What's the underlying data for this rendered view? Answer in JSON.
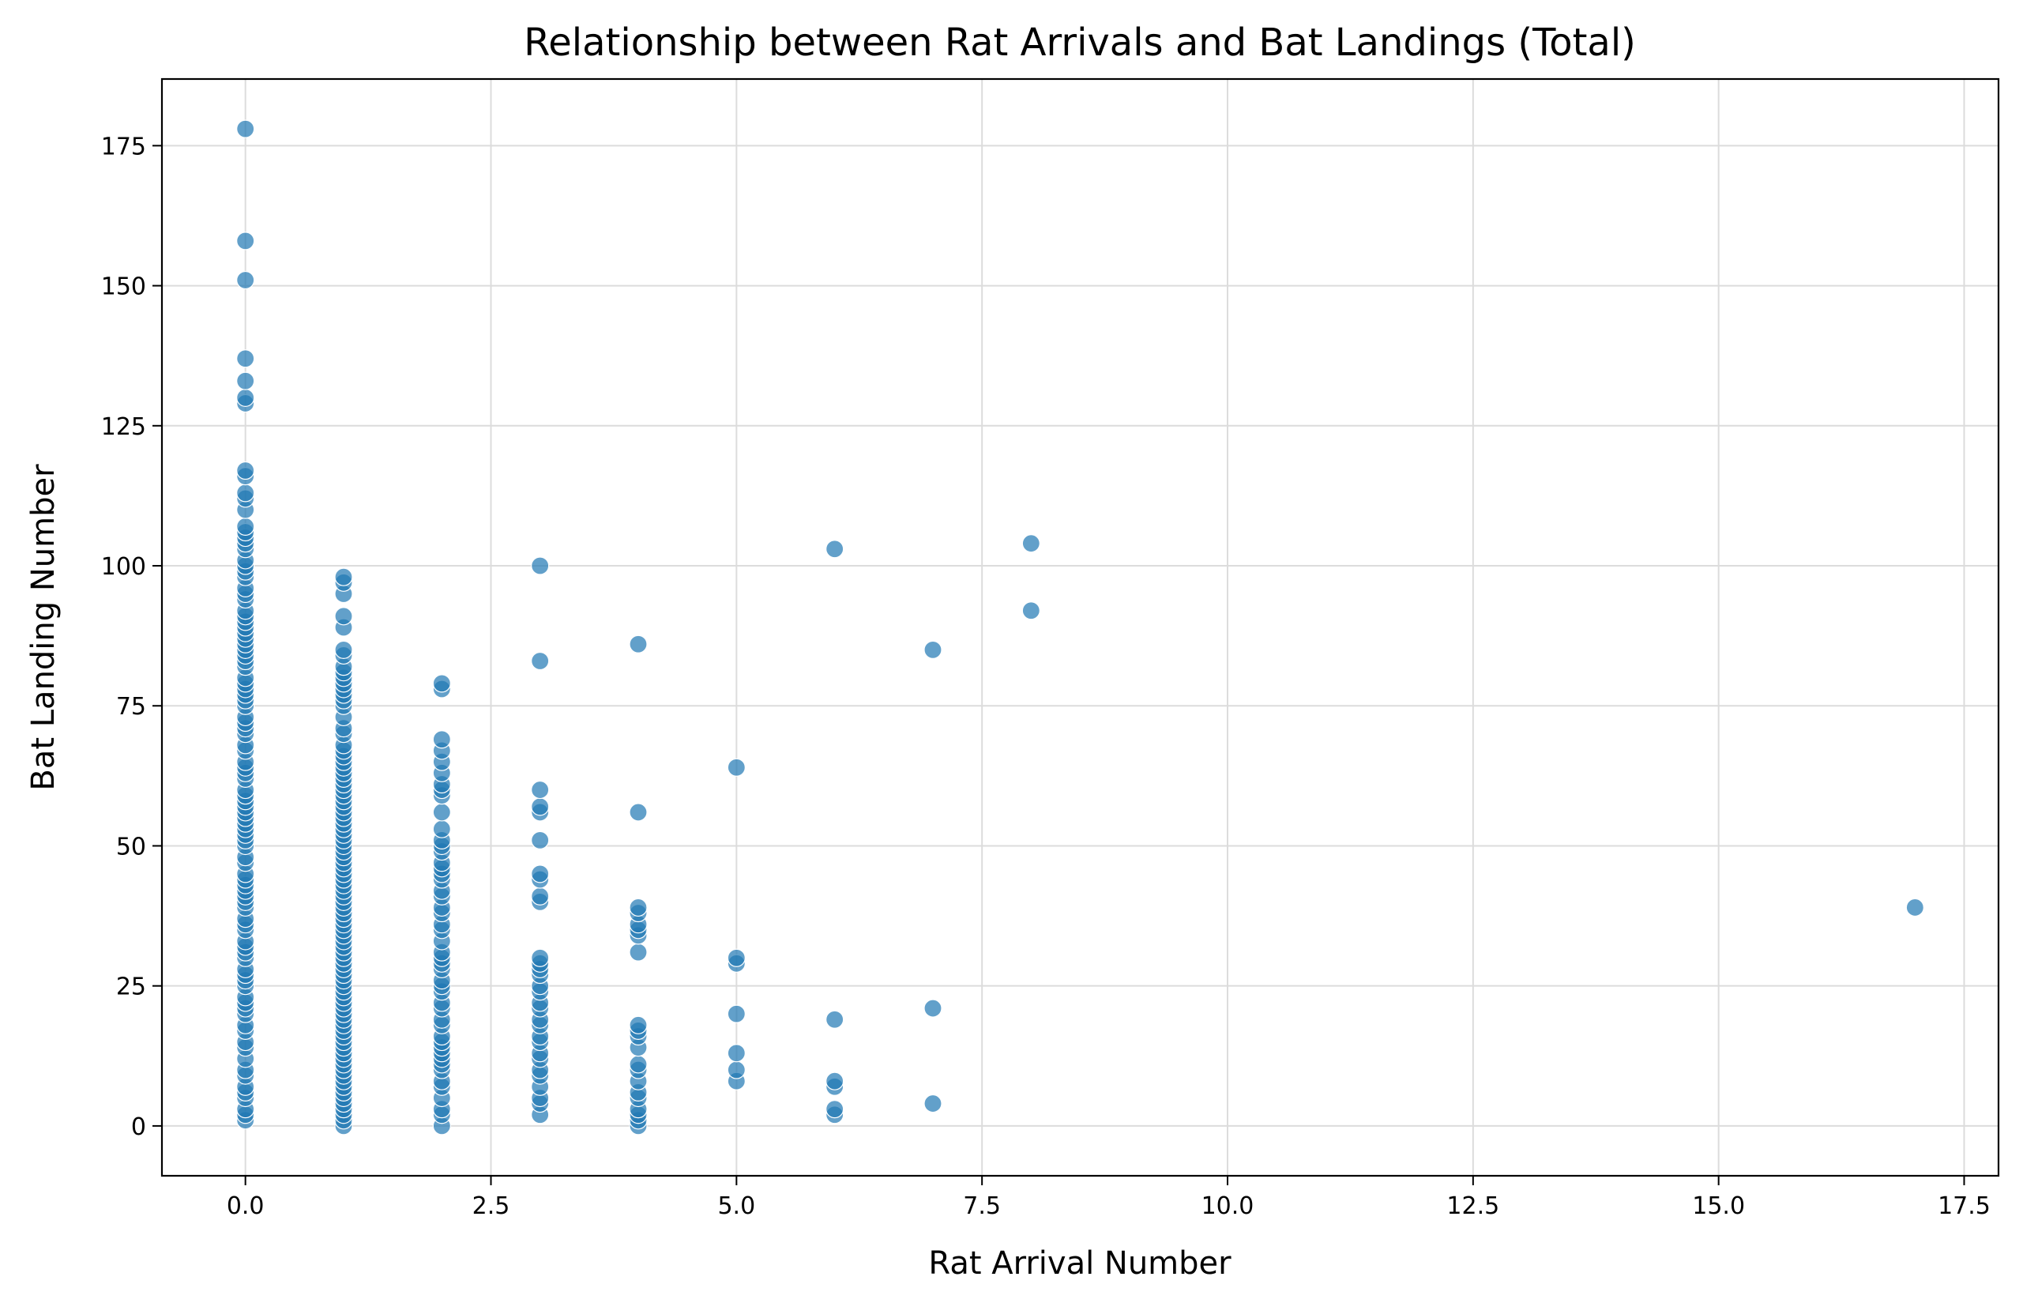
{
  "chart_data": {
    "type": "scatter",
    "title": "Relationship between Rat Arrivals and Bat Landings (Total)",
    "xlabel": "Rat Arrival Number",
    "ylabel": "Bat Landing Number",
    "xlim": [
      -0.85,
      17.85
    ],
    "ylim": [
      -8.9,
      186.9
    ],
    "xticks": [
      0,
      2.5,
      5,
      7.5,
      10,
      12.5,
      15,
      17.5
    ],
    "xtick_labels": [
      "0.0",
      "2.5",
      "5.0",
      "7.5",
      "10.0",
      "12.5",
      "15.0",
      "17.5"
    ],
    "yticks": [
      0,
      25,
      50,
      75,
      100,
      125,
      150,
      175
    ],
    "ytick_labels": [
      "0",
      "25",
      "50",
      "75",
      "100",
      "125",
      "150",
      "175"
    ],
    "grid": true,
    "marker_color": "#1f77b4",
    "marker_alpha": 0.7,
    "series": [
      {
        "points": [
          [
            0,
            1
          ],
          [
            0,
            2
          ],
          [
            0,
            3
          ],
          [
            0,
            5
          ],
          [
            0,
            6
          ],
          [
            0,
            7
          ],
          [
            0,
            9
          ],
          [
            0,
            10
          ],
          [
            0,
            12
          ],
          [
            0,
            14
          ],
          [
            0,
            15
          ],
          [
            0,
            17
          ],
          [
            0,
            18
          ],
          [
            0,
            20
          ],
          [
            0,
            21
          ],
          [
            0,
            22
          ],
          [
            0,
            23
          ],
          [
            0,
            25
          ],
          [
            0,
            26
          ],
          [
            0,
            27
          ],
          [
            0,
            28
          ],
          [
            0,
            30
          ],
          [
            0,
            31
          ],
          [
            0,
            32
          ],
          [
            0,
            33
          ],
          [
            0,
            35
          ],
          [
            0,
            36
          ],
          [
            0,
            37
          ],
          [
            0,
            39
          ],
          [
            0,
            40
          ],
          [
            0,
            41
          ],
          [
            0,
            42
          ],
          [
            0,
            43
          ],
          [
            0,
            44
          ],
          [
            0,
            45
          ],
          [
            0,
            47
          ],
          [
            0,
            48
          ],
          [
            0,
            50
          ],
          [
            0,
            51
          ],
          [
            0,
            52
          ],
          [
            0,
            53
          ],
          [
            0,
            54
          ],
          [
            0,
            55
          ],
          [
            0,
            56
          ],
          [
            0,
            57
          ],
          [
            0,
            58
          ],
          [
            0,
            59
          ],
          [
            0,
            60
          ],
          [
            0,
            62
          ],
          [
            0,
            63
          ],
          [
            0,
            64
          ],
          [
            0,
            65
          ],
          [
            0,
            67
          ],
          [
            0,
            68
          ],
          [
            0,
            70
          ],
          [
            0,
            71
          ],
          [
            0,
            72
          ],
          [
            0,
            73
          ],
          [
            0,
            75
          ],
          [
            0,
            76
          ],
          [
            0,
            77
          ],
          [
            0,
            78
          ],
          [
            0,
            79
          ],
          [
            0,
            80
          ],
          [
            0,
            82
          ],
          [
            0,
            83
          ],
          [
            0,
            84
          ],
          [
            0,
            85
          ],
          [
            0,
            86
          ],
          [
            0,
            87
          ],
          [
            0,
            88
          ],
          [
            0,
            89
          ],
          [
            0,
            90
          ],
          [
            0,
            91
          ],
          [
            0,
            92
          ],
          [
            0,
            94
          ],
          [
            0,
            95
          ],
          [
            0,
            96
          ],
          [
            0,
            98
          ],
          [
            0,
            99
          ],
          [
            0,
            100
          ],
          [
            0,
            101
          ],
          [
            0,
            103
          ],
          [
            0,
            104
          ],
          [
            0,
            105
          ],
          [
            0,
            106
          ],
          [
            0,
            107
          ],
          [
            0,
            110
          ],
          [
            0,
            112
          ],
          [
            0,
            113
          ],
          [
            0,
            116
          ],
          [
            0,
            117
          ],
          [
            0,
            129
          ],
          [
            0,
            130
          ],
          [
            0,
            133
          ],
          [
            0,
            137
          ],
          [
            0,
            151
          ],
          [
            0,
            158
          ],
          [
            0,
            178
          ],
          [
            1,
            0
          ],
          [
            1,
            1
          ],
          [
            1,
            2
          ],
          [
            1,
            3
          ],
          [
            1,
            4
          ],
          [
            1,
            5
          ],
          [
            1,
            6
          ],
          [
            1,
            7
          ],
          [
            1,
            8
          ],
          [
            1,
            9
          ],
          [
            1,
            10
          ],
          [
            1,
            11
          ],
          [
            1,
            12
          ],
          [
            1,
            13
          ],
          [
            1,
            14
          ],
          [
            1,
            15
          ],
          [
            1,
            16
          ],
          [
            1,
            17
          ],
          [
            1,
            18
          ],
          [
            1,
            19
          ],
          [
            1,
            20
          ],
          [
            1,
            21
          ],
          [
            1,
            22
          ],
          [
            1,
            23
          ],
          [
            1,
            24
          ],
          [
            1,
            25
          ],
          [
            1,
            26
          ],
          [
            1,
            27
          ],
          [
            1,
            28
          ],
          [
            1,
            29
          ],
          [
            1,
            30
          ],
          [
            1,
            31
          ],
          [
            1,
            32
          ],
          [
            1,
            33
          ],
          [
            1,
            34
          ],
          [
            1,
            35
          ],
          [
            1,
            36
          ],
          [
            1,
            37
          ],
          [
            1,
            38
          ],
          [
            1,
            39
          ],
          [
            1,
            40
          ],
          [
            1,
            41
          ],
          [
            1,
            42
          ],
          [
            1,
            43
          ],
          [
            1,
            44
          ],
          [
            1,
            45
          ],
          [
            1,
            46
          ],
          [
            1,
            47
          ],
          [
            1,
            48
          ],
          [
            1,
            49
          ],
          [
            1,
            50
          ],
          [
            1,
            51
          ],
          [
            1,
            52
          ],
          [
            1,
            53
          ],
          [
            1,
            54
          ],
          [
            1,
            55
          ],
          [
            1,
            56
          ],
          [
            1,
            57
          ],
          [
            1,
            58
          ],
          [
            1,
            59
          ],
          [
            1,
            60
          ],
          [
            1,
            61
          ],
          [
            1,
            62
          ],
          [
            1,
            63
          ],
          [
            1,
            64
          ],
          [
            1,
            65
          ],
          [
            1,
            66
          ],
          [
            1,
            67
          ],
          [
            1,
            68
          ],
          [
            1,
            70
          ],
          [
            1,
            71
          ],
          [
            1,
            73
          ],
          [
            1,
            75
          ],
          [
            1,
            76
          ],
          [
            1,
            77
          ],
          [
            1,
            78
          ],
          [
            1,
            79
          ],
          [
            1,
            80
          ],
          [
            1,
            81
          ],
          [
            1,
            82
          ],
          [
            1,
            84
          ],
          [
            1,
            85
          ],
          [
            1,
            89
          ],
          [
            1,
            91
          ],
          [
            1,
            95
          ],
          [
            1,
            97
          ],
          [
            1,
            98
          ],
          [
            2,
            0
          ],
          [
            2,
            2
          ],
          [
            2,
            3
          ],
          [
            2,
            5
          ],
          [
            2,
            7
          ],
          [
            2,
            8
          ],
          [
            2,
            10
          ],
          [
            2,
            11
          ],
          [
            2,
            12
          ],
          [
            2,
            13
          ],
          [
            2,
            14
          ],
          [
            2,
            15
          ],
          [
            2,
            16
          ],
          [
            2,
            18
          ],
          [
            2,
            19
          ],
          [
            2,
            21
          ],
          [
            2,
            22
          ],
          [
            2,
            24
          ],
          [
            2,
            25
          ],
          [
            2,
            26
          ],
          [
            2,
            28
          ],
          [
            2,
            29
          ],
          [
            2,
            30
          ],
          [
            2,
            31
          ],
          [
            2,
            33
          ],
          [
            2,
            35
          ],
          [
            2,
            36
          ],
          [
            2,
            38
          ],
          [
            2,
            39
          ],
          [
            2,
            41
          ],
          [
            2,
            42
          ],
          [
            2,
            44
          ],
          [
            2,
            45
          ],
          [
            2,
            46
          ],
          [
            2,
            47
          ],
          [
            2,
            49
          ],
          [
            2,
            50
          ],
          [
            2,
            51
          ],
          [
            2,
            53
          ],
          [
            2,
            56
          ],
          [
            2,
            59
          ],
          [
            2,
            60
          ],
          [
            2,
            61
          ],
          [
            2,
            63
          ],
          [
            2,
            65
          ],
          [
            2,
            67
          ],
          [
            2,
            69
          ],
          [
            2,
            78
          ],
          [
            2,
            79
          ],
          [
            3,
            2
          ],
          [
            3,
            4
          ],
          [
            3,
            5
          ],
          [
            3,
            7
          ],
          [
            3,
            9
          ],
          [
            3,
            10
          ],
          [
            3,
            12
          ],
          [
            3,
            13
          ],
          [
            3,
            15
          ],
          [
            3,
            16
          ],
          [
            3,
            18
          ],
          [
            3,
            19
          ],
          [
            3,
            21
          ],
          [
            3,
            22
          ],
          [
            3,
            24
          ],
          [
            3,
            25
          ],
          [
            3,
            27
          ],
          [
            3,
            28
          ],
          [
            3,
            29
          ],
          [
            3,
            30
          ],
          [
            3,
            40
          ],
          [
            3,
            41
          ],
          [
            3,
            44
          ],
          [
            3,
            45
          ],
          [
            3,
            51
          ],
          [
            3,
            56
          ],
          [
            3,
            57
          ],
          [
            3,
            60
          ],
          [
            3,
            83
          ],
          [
            3,
            100
          ],
          [
            4,
            0
          ],
          [
            4,
            1
          ],
          [
            4,
            2
          ],
          [
            4,
            3
          ],
          [
            4,
            5
          ],
          [
            4,
            6
          ],
          [
            4,
            8
          ],
          [
            4,
            10
          ],
          [
            4,
            11
          ],
          [
            4,
            14
          ],
          [
            4,
            16
          ],
          [
            4,
            17
          ],
          [
            4,
            18
          ],
          [
            4,
            31
          ],
          [
            4,
            34
          ],
          [
            4,
            35
          ],
          [
            4,
            36
          ],
          [
            4,
            38
          ],
          [
            4,
            39
          ],
          [
            4,
            56
          ],
          [
            4,
            86
          ],
          [
            5,
            8
          ],
          [
            5,
            10
          ],
          [
            5,
            13
          ],
          [
            5,
            20
          ],
          [
            5,
            29
          ],
          [
            5,
            30
          ],
          [
            5,
            64
          ],
          [
            6,
            2
          ],
          [
            6,
            3
          ],
          [
            6,
            7
          ],
          [
            6,
            8
          ],
          [
            6,
            19
          ],
          [
            6,
            103
          ],
          [
            7,
            4
          ],
          [
            7,
            21
          ],
          [
            7,
            85
          ],
          [
            8,
            92
          ],
          [
            8,
            104
          ],
          [
            17,
            39
          ]
        ]
      }
    ]
  }
}
